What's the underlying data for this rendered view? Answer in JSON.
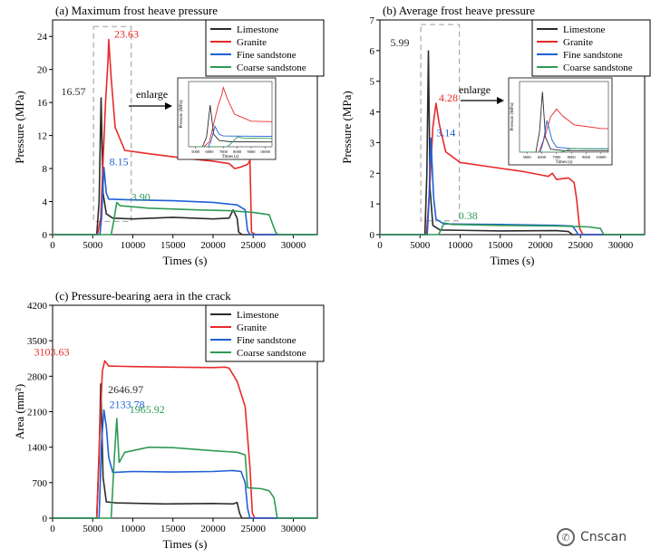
{
  "colors": {
    "limestone": "#2b2b2b",
    "granite": "#e8292a",
    "fine": "#1f5fd6",
    "coarse": "#2f9a55"
  },
  "watermark": {
    "text": "Cnscan"
  },
  "chart_data": [
    {
      "id": "a",
      "type": "line",
      "title": "(a) Maximum frost heave pressure",
      "xlabel": "Times (s)",
      "ylabel": "Pressure (MPa)",
      "xlim": [
        0,
        33000
      ],
      "ylim": [
        0,
        26
      ],
      "xticks": [
        0,
        5000,
        10000,
        15000,
        20000,
        25000,
        30000
      ],
      "yticks": [
        0,
        4,
        8,
        12,
        16,
        20,
        24
      ],
      "legend": [
        "Limestone",
        "Granite",
        "Fine sandstone",
        "Coarse sandstone"
      ],
      "legend_position": "top-right",
      "annotations": [
        {
          "text": "16.57",
          "series": "limestone",
          "x": 6050,
          "y": 16.57
        },
        {
          "text": "23.63",
          "series": "granite",
          "x": 7000,
          "y": 23.63
        },
        {
          "text": "8.15",
          "series": "fine",
          "x": 6400,
          "y": 8.15
        },
        {
          "text": "3.90",
          "series": "coarse",
          "x": 8000,
          "y": 3.9
        }
      ],
      "enlarge_label": "enlarge",
      "series": [
        {
          "name": "Limestone",
          "key": "limestone",
          "points": [
            [
              0,
              0
            ],
            [
              5500,
              0
            ],
            [
              5800,
              4
            ],
            [
              6050,
              16.57
            ],
            [
              6300,
              5
            ],
            [
              6700,
              2.5
            ],
            [
              7500,
              2.0
            ],
            [
              10000,
              1.9
            ],
            [
              15000,
              2.1
            ],
            [
              20000,
              1.9
            ],
            [
              22000,
              2.0
            ],
            [
              22500,
              3.0
            ],
            [
              23000,
              2.0
            ],
            [
              23200,
              0.3
            ],
            [
              23600,
              0
            ],
            [
              33000,
              0
            ]
          ]
        },
        {
          "name": "Granite",
          "key": "granite",
          "points": [
            [
              0,
              0
            ],
            [
              5600,
              0
            ],
            [
              6000,
              2
            ],
            [
              6300,
              9
            ],
            [
              6600,
              16
            ],
            [
              6900,
              21
            ],
            [
              7000,
              23.63
            ],
            [
              7300,
              19
            ],
            [
              7800,
              13
            ],
            [
              9000,
              10.2
            ],
            [
              12000,
              9.8
            ],
            [
              16000,
              9.3
            ],
            [
              20000,
              8.9
            ],
            [
              22000,
              8.6
            ],
            [
              22700,
              8.0
            ],
            [
              23500,
              8.2
            ],
            [
              24300,
              8.5
            ],
            [
              24600,
              9.0
            ],
            [
              24800,
              0.3
            ],
            [
              25300,
              0
            ],
            [
              33000,
              0
            ]
          ]
        },
        {
          "name": "Fine sandstone",
          "key": "fine",
          "points": [
            [
              0,
              0
            ],
            [
              5900,
              0
            ],
            [
              6100,
              2
            ],
            [
              6400,
              8.15
            ],
            [
              6700,
              5
            ],
            [
              7000,
              4.3
            ],
            [
              10000,
              4.2
            ],
            [
              15000,
              4.1
            ],
            [
              20000,
              3.9
            ],
            [
              23000,
              3.6
            ],
            [
              24000,
              3.0
            ],
            [
              24300,
              0.5
            ],
            [
              24600,
              0
            ],
            [
              33000,
              0
            ]
          ]
        },
        {
          "name": "Coarse sandstone",
          "key": "coarse",
          "points": [
            [
              0,
              0
            ],
            [
              7300,
              0
            ],
            [
              7600,
              1.5
            ],
            [
              8000,
              3.9
            ],
            [
              8400,
              3.5
            ],
            [
              12000,
              3.2
            ],
            [
              18000,
              3.0
            ],
            [
              22000,
              2.9
            ],
            [
              25000,
              2.7
            ],
            [
              27000,
              2.4
            ],
            [
              27800,
              0.3
            ],
            [
              28100,
              0
            ],
            [
              33000,
              0
            ]
          ]
        }
      ]
    },
    {
      "id": "b",
      "type": "line",
      "title": "(b) Average frost heave pressure",
      "xlabel": "Times (s)",
      "ylabel": "Pressure (MPa)",
      "xlim": [
        0,
        33000
      ],
      "ylim": [
        0,
        7
      ],
      "xticks": [
        0,
        5000,
        10000,
        15000,
        20000,
        25000,
        30000
      ],
      "yticks": [
        0,
        1,
        2,
        3,
        4,
        5,
        6,
        7
      ],
      "legend": [
        "Limestone",
        "Granite",
        "Fine sandstone",
        "Coarse sandstone"
      ],
      "legend_position": "top-right",
      "annotations": [
        {
          "text": "5.99",
          "series": "limestone",
          "x": 6050,
          "y": 5.99
        },
        {
          "text": "4.28",
          "series": "granite",
          "x": 7000,
          "y": 4.28
        },
        {
          "text": "3.14",
          "series": "fine",
          "x": 6350,
          "y": 3.14
        },
        {
          "text": "0.38",
          "series": "coarse",
          "x": 8000,
          "y": 0.38
        }
      ],
      "enlarge_label": "enlarge",
      "series": [
        {
          "name": "Limestone",
          "key": "limestone",
          "points": [
            [
              0,
              0
            ],
            [
              5600,
              0
            ],
            [
              5850,
              2
            ],
            [
              6050,
              5.99
            ],
            [
              6250,
              1.5
            ],
            [
              6600,
              0.3
            ],
            [
              7500,
              0.15
            ],
            [
              15000,
              0.12
            ],
            [
              22000,
              0.13
            ],
            [
              23500,
              0.1
            ],
            [
              24000,
              0
            ],
            [
              33000,
              0
            ]
          ]
        },
        {
          "name": "Granite",
          "key": "granite",
          "points": [
            [
              0,
              0
            ],
            [
              5800,
              0
            ],
            [
              6200,
              1.5
            ],
            [
              6600,
              3.5
            ],
            [
              7000,
              4.28
            ],
            [
              7400,
              3.6
            ],
            [
              8200,
              2.7
            ],
            [
              10000,
              2.35
            ],
            [
              14000,
              2.2
            ],
            [
              18000,
              2.05
            ],
            [
              20000,
              1.95
            ],
            [
              21000,
              1.9
            ],
            [
              21500,
              2.0
            ],
            [
              22000,
              1.8
            ],
            [
              23500,
              1.85
            ],
            [
              24200,
              1.7
            ],
            [
              24500,
              1.2
            ],
            [
              24900,
              0.2
            ],
            [
              25300,
              0
            ],
            [
              33000,
              0
            ]
          ]
        },
        {
          "name": "Fine sandstone",
          "key": "fine",
          "points": [
            [
              0,
              0
            ],
            [
              5900,
              0
            ],
            [
              6100,
              1
            ],
            [
              6350,
              3.14
            ],
            [
              6700,
              1.2
            ],
            [
              7000,
              0.5
            ],
            [
              8000,
              0.35
            ],
            [
              15000,
              0.33
            ],
            [
              22000,
              0.3
            ],
            [
              24000,
              0.28
            ],
            [
              24500,
              0.1
            ],
            [
              24700,
              0
            ],
            [
              33000,
              0
            ]
          ]
        },
        {
          "name": "Coarse sandstone",
          "key": "coarse",
          "points": [
            [
              0,
              0
            ],
            [
              7300,
              0
            ],
            [
              7700,
              0.2
            ],
            [
              8000,
              0.38
            ],
            [
              9000,
              0.33
            ],
            [
              15000,
              0.3
            ],
            [
              22000,
              0.28
            ],
            [
              26000,
              0.25
            ],
            [
              27500,
              0.2
            ],
            [
              27900,
              0
            ],
            [
              33000,
              0
            ]
          ]
        }
      ]
    },
    {
      "id": "c",
      "type": "line",
      "title": "(c) Pressure-bearing aera in the crack",
      "xlabel": "Times (s)",
      "ylabel": "Area (mm²)",
      "xlim": [
        0,
        33000
      ],
      "ylim": [
        0,
        4200
      ],
      "xticks": [
        0,
        5000,
        10000,
        15000,
        20000,
        25000,
        30000
      ],
      "yticks": [
        0,
        700,
        1400,
        2100,
        2800,
        3500,
        4200
      ],
      "legend": [
        "Limestone",
        "Granite",
        "Fine sandstone",
        "Coarse sandstone"
      ],
      "legend_position": "top-right",
      "annotations": [
        {
          "text": "3103.63",
          "series": "granite",
          "x": 6500,
          "y": 3103.63
        },
        {
          "text": "2646.97",
          "series": "limestone",
          "x": 6000,
          "y": 2646.97
        },
        {
          "text": "2133.78",
          "series": "fine",
          "x": 6400,
          "y": 2133.78
        },
        {
          "text": "1965.92",
          "series": "coarse",
          "x": 8000,
          "y": 1965.92
        }
      ],
      "series": [
        {
          "name": "Limestone",
          "key": "limestone",
          "points": [
            [
              0,
              0
            ],
            [
              5500,
              0
            ],
            [
              5800,
              1200
            ],
            [
              6000,
              2646.97
            ],
            [
              6300,
              800
            ],
            [
              6700,
              320
            ],
            [
              8000,
              300
            ],
            [
              14000,
              280
            ],
            [
              20000,
              290
            ],
            [
              22500,
              280
            ],
            [
              23000,
              310
            ],
            [
              23300,
              100
            ],
            [
              23600,
              0
            ],
            [
              33000,
              0
            ]
          ]
        },
        {
          "name": "Granite",
          "key": "granite",
          "points": [
            [
              0,
              0
            ],
            [
              5500,
              0
            ],
            [
              5900,
              1800
            ],
            [
              6200,
              2900
            ],
            [
              6500,
              3103.63
            ],
            [
              7000,
              3000
            ],
            [
              10000,
              2990
            ],
            [
              15000,
              2980
            ],
            [
              20000,
              2970
            ],
            [
              21500,
              2980
            ],
            [
              22000,
              2960
            ],
            [
              23000,
              2700
            ],
            [
              24000,
              2200
            ],
            [
              24600,
              1000
            ],
            [
              24900,
              100
            ],
            [
              25200,
              0
            ],
            [
              33000,
              0
            ]
          ]
        },
        {
          "name": "Fine sandstone",
          "key": "fine",
          "points": [
            [
              0,
              0
            ],
            [
              5800,
              0
            ],
            [
              6100,
              1500
            ],
            [
              6400,
              2133.78
            ],
            [
              6700,
              1800
            ],
            [
              7000,
              1200
            ],
            [
              7500,
              900
            ],
            [
              10000,
              920
            ],
            [
              15000,
              910
            ],
            [
              20000,
              920
            ],
            [
              22500,
              940
            ],
            [
              23500,
              920
            ],
            [
              24000,
              700
            ],
            [
              24300,
              200
            ],
            [
              24600,
              0
            ],
            [
              33000,
              0
            ]
          ]
        },
        {
          "name": "Coarse sandstone",
          "key": "coarse",
          "points": [
            [
              0,
              0
            ],
            [
              7300,
              0
            ],
            [
              7700,
              1200
            ],
            [
              8000,
              1965.92
            ],
            [
              8300,
              1100
            ],
            [
              9000,
              1300
            ],
            [
              12000,
              1400
            ],
            [
              15000,
              1390
            ],
            [
              20000,
              1330
            ],
            [
              23000,
              1300
            ],
            [
              24000,
              1250
            ],
            [
              24300,
              600
            ],
            [
              26000,
              580
            ],
            [
              27000,
              540
            ],
            [
              27600,
              400
            ],
            [
              28000,
              0
            ],
            [
              33000,
              0
            ]
          ]
        }
      ]
    }
  ]
}
